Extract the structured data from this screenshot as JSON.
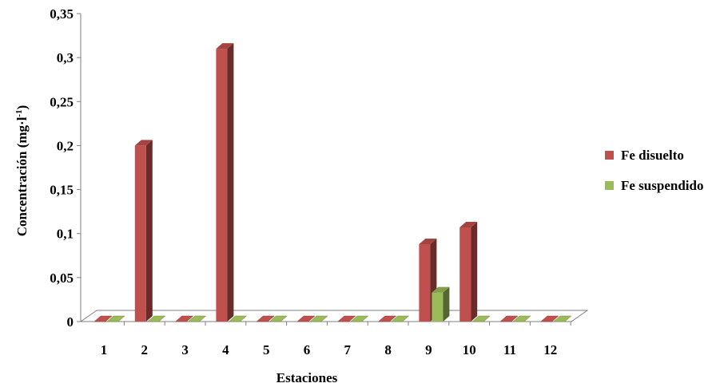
{
  "chart_data": {
    "type": "bar",
    "title": "",
    "xlabel": "Estaciones",
    "ylabel": "Concentración (mg·l",
    "ylabel_superscript": "-1",
    "ylabel_suffix": ")",
    "categories": [
      "1",
      "2",
      "3",
      "4",
      "5",
      "6",
      "7",
      "8",
      "9",
      "10",
      "11",
      "12"
    ],
    "y_ticks": [
      "0",
      "0,05",
      "0,1",
      "0,15",
      "0,2",
      "0,25",
      "0,3",
      "0,35"
    ],
    "ylim": [
      0,
      0.35
    ],
    "grid": false,
    "legend_position": "right",
    "series": [
      {
        "name": "Fe disuelto",
        "color": "#c0504d",
        "values": [
          0,
          0.2,
          0,
          0.31,
          0,
          0,
          0,
          0,
          0.088,
          0.107,
          0,
          0
        ]
      },
      {
        "name": "Fe suspendido",
        "color": "#9bbb59",
        "values": [
          0,
          0,
          0,
          0,
          0,
          0,
          0,
          0,
          0.033,
          0,
          0,
          0
        ]
      }
    ]
  }
}
